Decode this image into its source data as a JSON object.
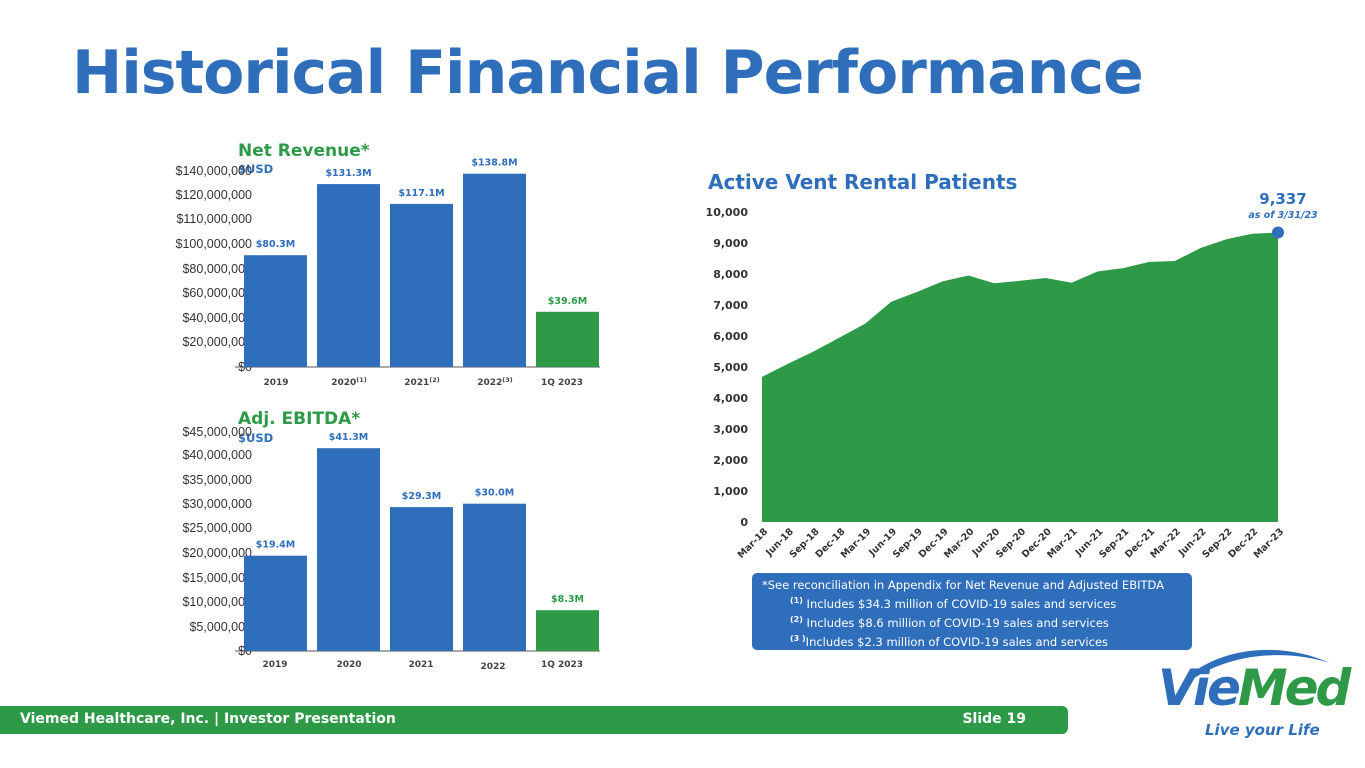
{
  "slide": {
    "title": "Historical Financial Performance",
    "footer_left": "Viemed Healthcare, Inc. | Investor Presentation",
    "footer_right": "Slide 19",
    "logo": {
      "part1": "Vie",
      "part2": "Med",
      "tagline": "Live your Life"
    }
  },
  "colors": {
    "blue": "#2f6eba",
    "green": "#2e9a48",
    "area": "#2e9a48",
    "dark_text": "#333333"
  },
  "footnotes": {
    "header": "*See reconciliation in Appendix for Net Revenue and Adjusted EBITDA",
    "lines": [
      {
        "mark": "(1)",
        "text": " Includes $34.3 million of COVID-19 sales and services"
      },
      {
        "mark": "(2)",
        "text": " Includes   $8.6 million of COVID-19 sales and services"
      },
      {
        "mark": "(3 )",
        "text": "Includes   $2.3 million of COVID-19 sales and services"
      }
    ]
  },
  "chart_data": [
    {
      "type": "bar",
      "title": "Net Revenue*",
      "subtitle": "$USD",
      "categories": [
        "2019",
        "2020",
        "2021",
        "2022",
        "1Q 2023"
      ],
      "category_superscripts": [
        "",
        "(1)",
        "(2)",
        "(3)",
        ""
      ],
      "values": [
        80300000,
        131300000,
        117100000,
        138800000,
        39600000
      ],
      "data_labels": [
        "$80.3M",
        "$131.3M",
        "$117.1M",
        "$138.8M",
        "$39.6M"
      ],
      "bar_colors": [
        "blue",
        "blue",
        "blue",
        "blue",
        "green"
      ],
      "yticks": [
        "$0",
        "$20,000,000",
        "$40,000,000",
        "$60,000,000",
        "$80,000,000",
        "$100,000,000",
        "$110,000,000",
        "$120,000,000",
        "$140,000,000"
      ],
      "ylim": [
        0,
        140000000
      ]
    },
    {
      "type": "bar",
      "title": "Adj. EBITDA*",
      "subtitle": "$USD",
      "categories": [
        "2019",
        "2020",
        "2021",
        "2022",
        "1Q 2023"
      ],
      "values": [
        19400000,
        41300000,
        29300000,
        30000000,
        8300000
      ],
      "data_labels": [
        "$19.4M",
        "$41.3M",
        "$29.3M",
        "$30.0M",
        "$8.3M"
      ],
      "bar_colors": [
        "blue",
        "blue",
        "blue",
        "blue",
        "green"
      ],
      "yticks": [
        "$0",
        "$5,000,000",
        "$10,000,000",
        "$15,000,000",
        "$20,000,000",
        "$25,000,000",
        "$30,000,000",
        "$35,000,000",
        "$40,000,000",
        "$45,000,000"
      ],
      "ylim": [
        0,
        45000000
      ]
    },
    {
      "type": "area",
      "title": "Active Vent Rental Patients",
      "x": [
        "Mar-18",
        "Jun-18",
        "Sep-18",
        "Dec-18",
        "Mar-19",
        "Jun-19",
        "Sep-19",
        "Dec-19",
        "Mar-20",
        "Jun-20",
        "Sep-20",
        "Dec-20",
        "Mar-21",
        "Jun-21",
        "Sep-21",
        "Dec-21",
        "Mar-22",
        "Jun-22",
        "Sep-22",
        "Dec-22",
        "Mar-23"
      ],
      "values": [
        4680,
        5100,
        5500,
        5950,
        6400,
        7100,
        7420,
        7760,
        7950,
        7700,
        7780,
        7870,
        7720,
        8080,
        8190,
        8390,
        8420,
        8840,
        9120,
        9300,
        9337
      ],
      "yticks": [
        "0",
        "1,000",
        "2,000",
        "3,000",
        "4,000",
        "5,000",
        "6,000",
        "7,000",
        "8,000",
        "9,000",
        "10,000"
      ],
      "ylim": [
        0,
        10000
      ],
      "annotation": {
        "value": "9,337",
        "note": "as of 3/31/23"
      }
    }
  ]
}
